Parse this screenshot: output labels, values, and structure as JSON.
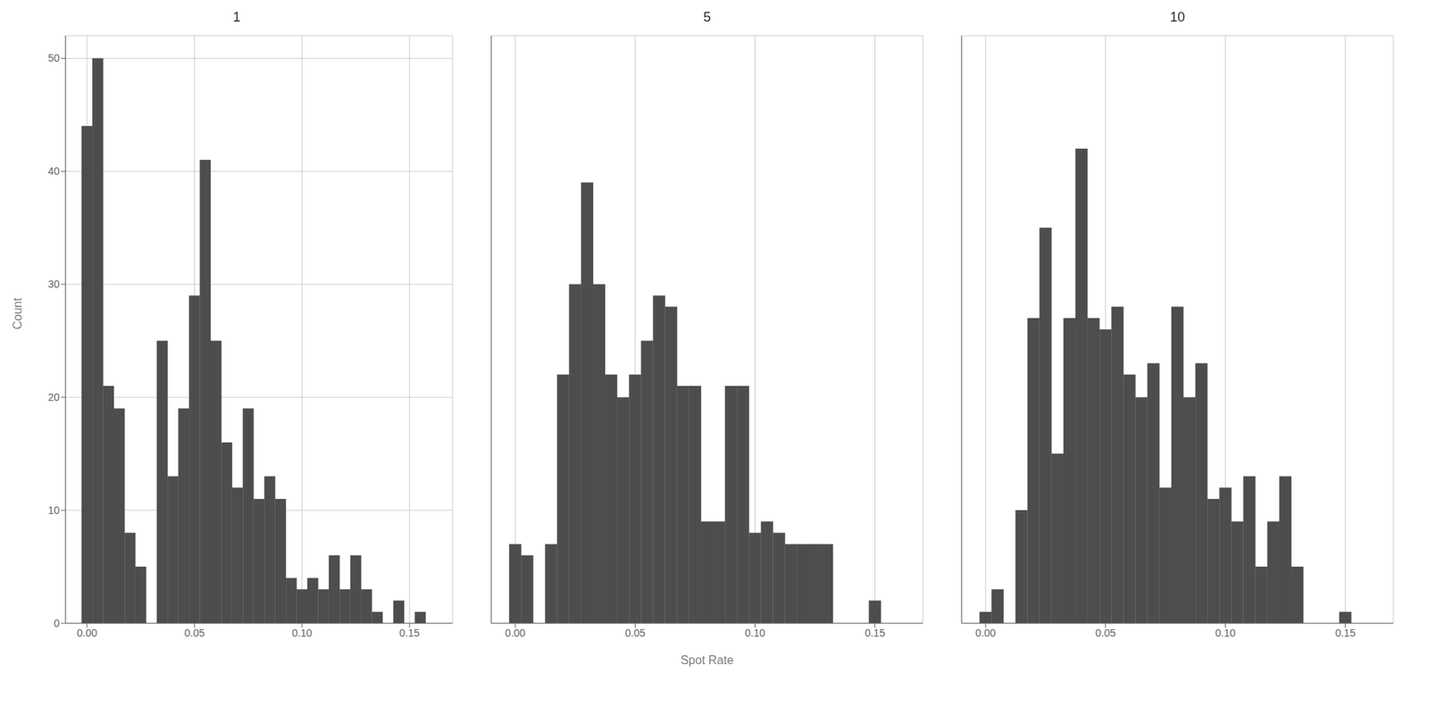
{
  "chart_data": [
    {
      "type": "histogram",
      "title": "1",
      "ylabel": "Count",
      "bins": [
        -0.0025,
        0.0025,
        0.0075,
        0.0125,
        0.0175,
        0.0225,
        0.0275,
        0.0325,
        0.0375,
        0.0425,
        0.0475,
        0.0525,
        0.0575,
        0.0625,
        0.0675,
        0.0725,
        0.0775,
        0.0825,
        0.0875,
        0.0925,
        0.0975,
        0.1025,
        0.1075,
        0.1125,
        0.1175,
        0.1225,
        0.1275,
        0.1325,
        0.1375,
        0.1425,
        0.1475,
        0.1525,
        0.1575,
        0.1625,
        0.1675
      ],
      "values": [
        44,
        50,
        21,
        19,
        8,
        5,
        0,
        25,
        13,
        19,
        29,
        41,
        25,
        16,
        12,
        19,
        11,
        13,
        11,
        4,
        3,
        4,
        3,
        6,
        3,
        6,
        3,
        1,
        0,
        2,
        0,
        1,
        0,
        0
      ],
      "color": "#4d4d4d",
      "xlim": [
        -0.01,
        0.17
      ],
      "ylim": [
        0,
        52
      ],
      "xticks": [
        {
          "value": 0,
          "label": "0.00"
        },
        0.05,
        {
          "value": 0.1,
          "label": "0.10"
        },
        0.15
      ],
      "yticks": [
        0,
        10,
        20,
        30,
        40,
        50
      ],
      "grid": true
    },
    {
      "type": "histogram",
      "title": "5",
      "xlabel": "Spot Rate",
      "bins": [
        -0.0025,
        0.0025,
        0.0075,
        0.0125,
        0.0175,
        0.0225,
        0.0275,
        0.0325,
        0.0375,
        0.0425,
        0.0475,
        0.0525,
        0.0575,
        0.0625,
        0.0675,
        0.0725,
        0.0775,
        0.0825,
        0.0875,
        0.0925,
        0.0975,
        0.1025,
        0.1075,
        0.1125,
        0.1175,
        0.1225,
        0.1275,
        0.1325,
        0.1375,
        0.1425,
        0.1475,
        0.1525
      ],
      "values": [
        7,
        6,
        0,
        7,
        22,
        30,
        39,
        30,
        22,
        20,
        22,
        25,
        29,
        28,
        21,
        21,
        9,
        9,
        21,
        21,
        8,
        9,
        8,
        7,
        7,
        7,
        7,
        0,
        0,
        0,
        2
      ],
      "color": "#4d4d4d",
      "xlim": [
        -0.01,
        0.17
      ],
      "ylim": [
        0,
        52
      ],
      "xticks": [
        {
          "value": 0,
          "label": "0.00"
        },
        0.05,
        {
          "value": 0.1,
          "label": "0.10"
        },
        0.15
      ],
      "yticks": [
        0,
        10,
        20,
        30,
        40,
        50
      ],
      "grid": true,
      "tick_labels": "x"
    },
    {
      "type": "histogram",
      "title": "10",
      "bins": [
        -0.0025,
        0.0025,
        0.0075,
        0.0125,
        0.0175,
        0.0225,
        0.0275,
        0.0325,
        0.0375,
        0.0425,
        0.0475,
        0.0525,
        0.0575,
        0.0625,
        0.0675,
        0.0725,
        0.0775,
        0.0825,
        0.0875,
        0.0925,
        0.0975,
        0.1025,
        0.1075,
        0.1125,
        0.1175,
        0.1225,
        0.1275,
        0.1325,
        0.1375,
        0.1425,
        0.1475,
        0.1525
      ],
      "values": [
        1,
        3,
        0,
        10,
        27,
        35,
        15,
        27,
        42,
        27,
        26,
        28,
        22,
        20,
        23,
        12,
        28,
        20,
        23,
        11,
        12,
        9,
        13,
        5,
        9,
        13,
        5,
        0,
        0,
        0,
        1
      ],
      "color": "#4d4d4d",
      "xlim": [
        -0.01,
        0.17
      ],
      "ylim": [
        0,
        52
      ],
      "xticks": [
        {
          "value": 0,
          "label": "0.00"
        },
        0.05,
        {
          "value": 0.1,
          "label": "0.10"
        },
        0.15
      ],
      "yticks": [
        0,
        10,
        20,
        30,
        40,
        50
      ],
      "grid": true,
      "tick_labels": "x"
    }
  ]
}
